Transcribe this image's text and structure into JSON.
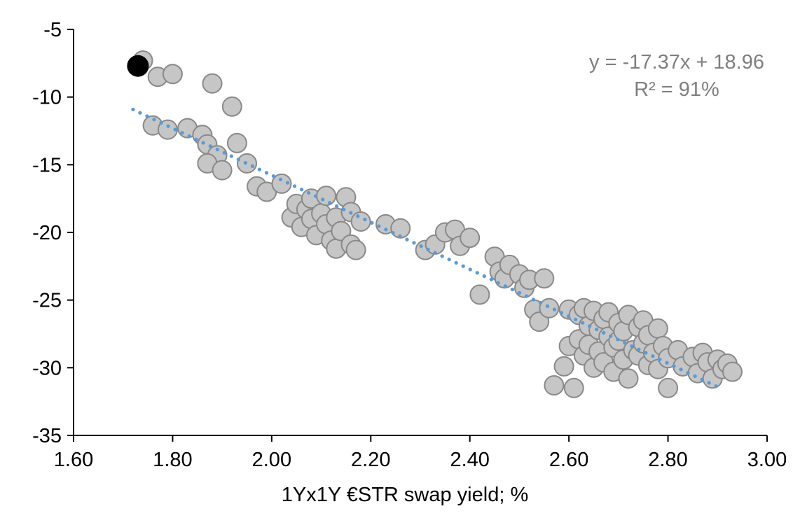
{
  "chart_data": {
    "type": "scatter",
    "title": "",
    "xlabel": "1Yx1Y €STR swap yield; %",
    "ylabel": "",
    "xlim": [
      1.6,
      3.0
    ],
    "ylim": [
      -35,
      -5
    ],
    "grid": false,
    "legend": "none",
    "annotation": {
      "line1": "y = -17.37x + 18.96",
      "line2": "R² = 91%",
      "color": "#7f7f7f"
    },
    "x_ticks": [
      {
        "v": 1.6,
        "label": "1.60"
      },
      {
        "v": 1.8,
        "label": "1.80"
      },
      {
        "v": 2.0,
        "label": "2.00"
      },
      {
        "v": 2.2,
        "label": "2.20"
      },
      {
        "v": 2.4,
        "label": "2.40"
      },
      {
        "v": 2.6,
        "label": "2.60"
      },
      {
        "v": 2.8,
        "label": "2.80"
      },
      {
        "v": 3.0,
        "label": "3.00"
      }
    ],
    "y_ticks": [
      {
        "v": -5,
        "label": "-5"
      },
      {
        "v": -10,
        "label": "-10"
      },
      {
        "v": -15,
        "label": "-15"
      },
      {
        "v": -20,
        "label": "-20"
      },
      {
        "v": -25,
        "label": "-25"
      },
      {
        "v": -30,
        "label": "-30"
      },
      {
        "v": -35,
        "label": "-35"
      }
    ],
    "trendline": {
      "type": "linear",
      "slope": -17.37,
      "intercept": 18.96,
      "x_start": 1.72,
      "x_end": 2.91,
      "style": "dotted",
      "color": "#5b9bd5"
    },
    "series": [
      {
        "name": "observations",
        "marker": "circle",
        "fill": "#c6c6c6",
        "stroke": "#898989",
        "points": [
          [
            1.74,
            -7.3
          ],
          [
            1.77,
            -8.5
          ],
          [
            1.8,
            -8.3
          ],
          [
            1.88,
            -9.0
          ],
          [
            1.92,
            -10.7
          ],
          [
            1.76,
            -12.1
          ],
          [
            1.79,
            -12.4
          ],
          [
            1.83,
            -12.3
          ],
          [
            1.86,
            -12.8
          ],
          [
            1.87,
            -13.5
          ],
          [
            1.89,
            -14.3
          ],
          [
            1.87,
            -14.9
          ],
          [
            1.93,
            -13.4
          ],
          [
            1.9,
            -15.4
          ],
          [
            1.95,
            -14.9
          ],
          [
            1.97,
            -16.6
          ],
          [
            1.99,
            -17.0
          ],
          [
            2.02,
            -16.4
          ],
          [
            2.04,
            -18.9
          ],
          [
            2.05,
            -17.9
          ],
          [
            2.06,
            -19.6
          ],
          [
            2.07,
            -18.3
          ],
          [
            2.08,
            -17.5
          ],
          [
            2.08,
            -19.0
          ],
          [
            2.09,
            -20.2
          ],
          [
            2.1,
            -18.6
          ],
          [
            2.11,
            -19.4
          ],
          [
            2.11,
            -17.3
          ],
          [
            2.12,
            -20.6
          ],
          [
            2.13,
            -18.9
          ],
          [
            2.13,
            -21.2
          ],
          [
            2.14,
            -19.9
          ],
          [
            2.15,
            -17.4
          ],
          [
            2.16,
            -18.5
          ],
          [
            2.16,
            -20.9
          ],
          [
            2.17,
            -21.3
          ],
          [
            2.18,
            -19.2
          ],
          [
            2.23,
            -19.4
          ],
          [
            2.26,
            -19.7
          ],
          [
            2.31,
            -21.3
          ],
          [
            2.33,
            -20.9
          ],
          [
            2.35,
            -20.0
          ],
          [
            2.37,
            -19.8
          ],
          [
            2.38,
            -21.0
          ],
          [
            2.4,
            -20.4
          ],
          [
            2.42,
            -24.6
          ],
          [
            2.45,
            -21.8
          ],
          [
            2.46,
            -22.9
          ],
          [
            2.47,
            -23.4
          ],
          [
            2.48,
            -22.4
          ],
          [
            2.5,
            -23.1
          ],
          [
            2.51,
            -24.1
          ],
          [
            2.52,
            -23.5
          ],
          [
            2.53,
            -25.7
          ],
          [
            2.54,
            -26.6
          ],
          [
            2.55,
            -23.4
          ],
          [
            2.56,
            -25.6
          ],
          [
            2.57,
            -31.3
          ],
          [
            2.59,
            -29.9
          ],
          [
            2.6,
            -25.7
          ],
          [
            2.6,
            -28.4
          ],
          [
            2.61,
            -31.5
          ],
          [
            2.62,
            -26.1
          ],
          [
            2.62,
            -27.9
          ],
          [
            2.63,
            -25.6
          ],
          [
            2.63,
            -29.1
          ],
          [
            2.64,
            -26.9
          ],
          [
            2.64,
            -28.3
          ],
          [
            2.65,
            -25.8
          ],
          [
            2.65,
            -30.0
          ],
          [
            2.66,
            -27.2
          ],
          [
            2.66,
            -28.8
          ],
          [
            2.67,
            -26.4
          ],
          [
            2.67,
            -29.6
          ],
          [
            2.68,
            -27.7
          ],
          [
            2.68,
            -25.9
          ],
          [
            2.69,
            -28.5
          ],
          [
            2.69,
            -30.3
          ],
          [
            2.7,
            -26.7
          ],
          [
            2.7,
            -28.0
          ],
          [
            2.71,
            -29.4
          ],
          [
            2.71,
            -27.3
          ],
          [
            2.72,
            -26.1
          ],
          [
            2.72,
            -30.8
          ],
          [
            2.73,
            -28.7
          ],
          [
            2.74,
            -27.0
          ],
          [
            2.74,
            -29.1
          ],
          [
            2.75,
            -28.2
          ],
          [
            2.75,
            -26.5
          ],
          [
            2.76,
            -29.8
          ],
          [
            2.76,
            -27.6
          ],
          [
            2.77,
            -28.9
          ],
          [
            2.78,
            -27.1
          ],
          [
            2.78,
            -30.1
          ],
          [
            2.79,
            -28.4
          ],
          [
            2.8,
            -29.3
          ],
          [
            2.8,
            -31.5
          ],
          [
            2.82,
            -28.7
          ],
          [
            2.83,
            -29.9
          ],
          [
            2.85,
            -29.2
          ],
          [
            2.86,
            -30.4
          ],
          [
            2.87,
            -28.9
          ],
          [
            2.88,
            -29.6
          ],
          [
            2.89,
            -30.8
          ],
          [
            2.9,
            -29.4
          ],
          [
            2.91,
            -30.1
          ],
          [
            2.92,
            -29.7
          ],
          [
            2.93,
            -30.3
          ]
        ]
      },
      {
        "name": "highlighted-latest",
        "marker": "circle",
        "fill": "#000000",
        "stroke": "#000000",
        "points": [
          [
            1.73,
            -7.7
          ]
        ]
      }
    ],
    "colors": {
      "axis": "#000000",
      "tick_label": "#000000",
      "marker_fill": "#c6c6c6",
      "marker_stroke": "#898989",
      "trendline": "#5b9bd5",
      "annotation": "#7f7f7f"
    }
  }
}
